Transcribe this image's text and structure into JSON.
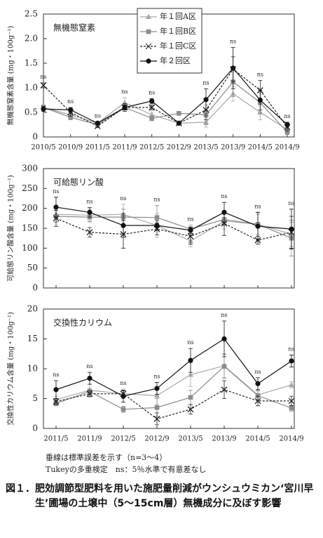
{
  "chart_data": [
    {
      "type": "line",
      "title": "無機態窒素",
      "y_label": "無機態窒素含量 (mg・100g⁻¹)",
      "categories": [
        "2010/5",
        "2010/9",
        "2011/5",
        "2011/9",
        "2012/5",
        "2012/9",
        "2013/5",
        "2013/9",
        "2014/5",
        "2014/9"
      ],
      "ylim": [
        0,
        2.5
      ],
      "yticks": [
        0,
        0.5,
        {
          "value": 1,
          "label": "1.0"
        },
        1.5,
        {
          "value": 2,
          "label": "2.0"
        },
        2.5
      ],
      "legend": "top",
      "annotations": [
        "ns",
        "ns",
        "ns",
        "ns",
        "ns",
        null,
        "ns",
        "ns",
        "ns",
        "ns"
      ],
      "series": [
        {
          "name": "年１回A区",
          "color": "#a8a8a8",
          "marker": "triangle",
          "dash": false,
          "values": [
            0.6,
            0.45,
            0.28,
            0.7,
            0.45,
            0.28,
            0.3,
            0.88,
            0.5,
            0.15
          ],
          "errors": [
            0.05,
            0.05,
            0.03,
            0.1,
            0.05,
            0.03,
            0.1,
            0.15,
            0.15,
            0.05
          ]
        },
        {
          "name": "年１回B区",
          "color": "#8c8c8c",
          "marker": "square",
          "dash": false,
          "values": [
            0.6,
            0.4,
            0.25,
            0.6,
            0.38,
            0.48,
            0.45,
            1.12,
            0.7,
            0.1
          ],
          "errors": [
            0.05,
            0.05,
            0.03,
            0.05,
            0.05,
            0.03,
            0.2,
            0.3,
            0.2,
            0.05
          ]
        },
        {
          "name": "年１回C区",
          "color": "#222222",
          "marker": "x",
          "dash": true,
          "values": [
            1.05,
            0.5,
            0.22,
            0.6,
            0.6,
            0.28,
            0.55,
            1.38,
            0.95,
            0.2
          ],
          "errors": [
            0.05,
            0.08,
            0.03,
            0.05,
            0.05,
            0.03,
            0.2,
            0.25,
            0.2,
            0.08
          ]
        },
        {
          "name": "年２回区",
          "color": "#111111",
          "marker": "circle",
          "dash": false,
          "values": [
            0.57,
            0.55,
            0.28,
            0.6,
            0.73,
            0.28,
            0.76,
            1.4,
            0.75,
            0.25
          ],
          "errors": [
            0.05,
            0.05,
            0.03,
            0.08,
            0.05,
            0.03,
            0.22,
            0.42,
            0.2,
            0.05
          ]
        }
      ]
    },
    {
      "type": "line",
      "title": "可給態リン酸",
      "y_label": "可給態リン酸含量 (mg・100g⁻¹)",
      "categories": [
        null,
        null,
        null,
        null,
        null,
        null,
        null,
        null
      ],
      "ylim": [
        0,
        300
      ],
      "yticks": [
        0,
        50,
        100,
        150,
        200,
        250,
        300
      ],
      "annotations": [
        "ns",
        "ns",
        "ns",
        "ns",
        "ns",
        "ns",
        "ns",
        "ns"
      ],
      "series": [
        {
          "color": "#a8a8a8",
          "marker": "triangle",
          "dash": false,
          "values": [
            185,
            183,
            185,
            157,
            118,
            168,
            160,
            135
          ],
          "errors": [
            18,
            15,
            25,
            30,
            15,
            20,
            25,
            30
          ]
        },
        {
          "color": "#8c8c8c",
          "marker": "square",
          "dash": false,
          "values": [
            180,
            178,
            178,
            177,
            148,
            172,
            160,
            125
          ],
          "errors": [
            15,
            12,
            20,
            30,
            10,
            15,
            30,
            45
          ]
        },
        {
          "color": "#222222",
          "marker": "x",
          "dash": true,
          "values": [
            175,
            140,
            135,
            148,
            130,
            162,
            120,
            140
          ],
          "errors": [
            20,
            12,
            35,
            15,
            20,
            30,
            10,
            40
          ]
        },
        {
          "color": "#111111",
          "marker": "circle",
          "dash": false,
          "values": [
            203,
            190,
            157,
            157,
            145,
            190,
            155,
            148
          ],
          "errors": [
            25,
            12,
            30,
            12,
            8,
            25,
            35,
            50
          ]
        }
      ]
    },
    {
      "type": "line",
      "title": "交換性カリウム",
      "y_label": "交換性カリウム含量 (mg・100g⁻¹)",
      "categories": [
        "2011/5",
        "2011/9",
        "2012/5",
        "2012/9",
        "2013/5",
        "2013/9",
        "2014/5",
        "2014/9"
      ],
      "ylim": [
        0,
        20
      ],
      "yticks": [
        0,
        5,
        10,
        15,
        20
      ],
      "annotations": [
        "ns",
        "ns",
        "ns",
        "ns",
        "ns",
        "ns",
        "ns",
        "ns"
      ],
      "series": [
        {
          "color": "#a8a8a8",
          "marker": "triangle",
          "dash": false,
          "values": [
            4.8,
            6.4,
            5.8,
            5.5,
            9,
            10.5,
            5.6,
            7.3
          ],
          "errors": [
            0.6,
            1,
            0.8,
            1.5,
            2,
            2,
            0.8,
            0.5
          ]
        },
        {
          "color": "#8c8c8c",
          "marker": "square",
          "dash": false,
          "values": [
            4.2,
            6.2,
            3.2,
            3.5,
            5.2,
            10.4,
            5.5,
            3.4
          ],
          "errors": [
            0.4,
            0.5,
            0.5,
            1.5,
            1.2,
            2,
            0.8,
            0.5
          ]
        },
        {
          "color": "#222222",
          "marker": "x",
          "dash": true,
          "values": [
            4.5,
            5.8,
            5.8,
            1.6,
            3.2,
            6.5,
            4.6,
            4.6
          ],
          "errors": [
            0.5,
            0.5,
            0.5,
            1,
            0.8,
            1.5,
            0.8,
            0.8
          ]
        },
        {
          "color": "#111111",
          "marker": "circle",
          "dash": false,
          "values": [
            6.5,
            8.4,
            5.4,
            6.7,
            11.4,
            15,
            7.5,
            11.3
          ],
          "errors": [
            1.5,
            1,
            1,
            1,
            2,
            3,
            1,
            1
          ]
        }
      ]
    }
  ],
  "notes": [
    "垂線は標準誤差を示す（n=3～4）",
    "Tukeyの多重検定　ns：5％水準で有意差なし"
  ],
  "caption": {
    "label": "図１．",
    "text": "肥効調節型肥料を用いた施肥量削減がウンシュウミカン‘宮川早生’圃場の土壌中（5～15cm層）無機成分に及ぼす影響"
  }
}
